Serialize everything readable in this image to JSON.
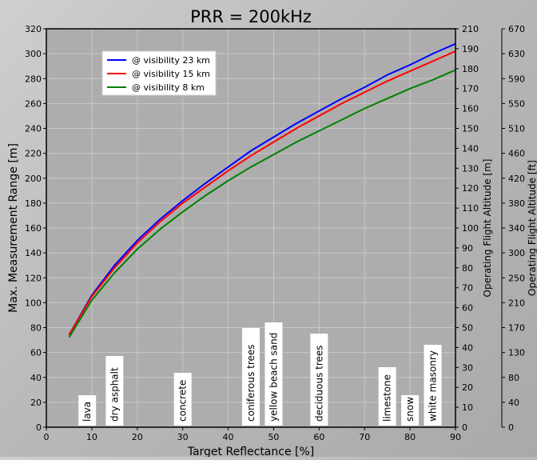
{
  "chart_data": {
    "type": "line",
    "title": "PRR = 200kHz",
    "xlabel": "Target Reflectance [%]",
    "ylabel": "Max. Measurement Range [m]",
    "xlim": [
      0,
      90
    ],
    "ylim": [
      0,
      320
    ],
    "xticks": [
      0,
      10,
      20,
      30,
      40,
      50,
      60,
      70,
      80,
      90
    ],
    "yticks": [
      0,
      20,
      40,
      60,
      80,
      100,
      120,
      140,
      160,
      180,
      200,
      220,
      240,
      260,
      280,
      300,
      320
    ],
    "right_axis_m": {
      "label": "Operating Flight Altitude [m]",
      "ticks": [
        0,
        10,
        20,
        30,
        40,
        50,
        60,
        70,
        80,
        90,
        100,
        110,
        120,
        130,
        140,
        150,
        160,
        170,
        180,
        190,
        210
      ]
    },
    "right_axis_ft": {
      "label": "Operating Flight Altitude [ft]",
      "ticks": [
        0,
        40,
        80,
        130,
        170,
        210,
        250,
        300,
        340,
        380,
        420,
        460,
        510,
        550,
        590,
        630,
        670
      ]
    },
    "grid": true,
    "legend_position": "top-left",
    "x": [
      5,
      10,
      15,
      20,
      25,
      30,
      35,
      40,
      45,
      50,
      55,
      60,
      65,
      70,
      75,
      80,
      85,
      90
    ],
    "series": [
      {
        "name": "@ visibility 23 km",
        "color": "#0000ff",
        "values": [
          74,
          106,
          130,
          150,
          167,
          182,
          196,
          209,
          222,
          233,
          244,
          254,
          264,
          273,
          283,
          291,
          300,
          308
        ]
      },
      {
        "name": "@ visibility 15 km",
        "color": "#ff0000",
        "values": [
          74,
          105,
          128,
          148,
          165,
          180,
          193,
          206,
          218,
          229,
          240,
          250,
          260,
          269,
          278,
          286,
          294,
          302
        ]
      },
      {
        "name": "@ visibility 8 km",
        "color": "#008000",
        "values": [
          72,
          102,
          124,
          143,
          159,
          173,
          186,
          198,
          209,
          219,
          229,
          238,
          247,
          256,
          264,
          272,
          279,
          287
        ]
      }
    ],
    "annotations": [
      {
        "text": "lava",
        "x": 9
      },
      {
        "text": "dry asphalt",
        "x": 15
      },
      {
        "text": "concrete",
        "x": 30
      },
      {
        "text": "coniferous trees",
        "x": 45
      },
      {
        "text": "yellow beach sand",
        "x": 50
      },
      {
        "text": "deciduous trees",
        "x": 60
      },
      {
        "text": "limestone",
        "x": 75
      },
      {
        "text": "snow",
        "x": 80
      },
      {
        "text": "white masonry",
        "x": 85
      }
    ]
  }
}
